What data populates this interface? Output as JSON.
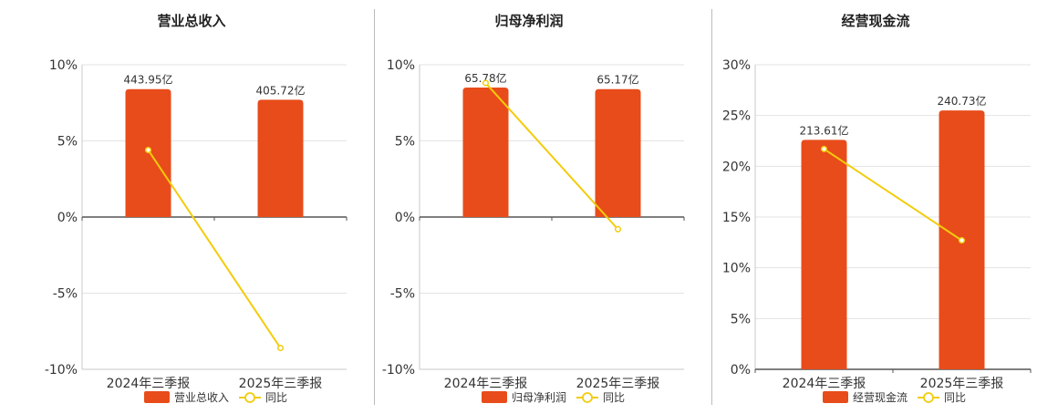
{
  "chart_data": [
    {
      "type": "bar",
      "title": "营业总收入",
      "categories": [
        "2024年三季报",
        "2025年三季报"
      ],
      "series": [
        {
          "name": "营业总收入",
          "type": "bar",
          "values": [
            8.4,
            7.7
          ],
          "labels": [
            "443.95亿",
            "405.72亿"
          ]
        },
        {
          "name": "同比",
          "type": "line",
          "values": [
            4.4,
            -8.6
          ]
        }
      ],
      "ylim": [
        -10,
        10
      ],
      "yticks": [
        -10,
        -5,
        0,
        5,
        10
      ],
      "ytick_labels": [
        "-10%",
        "-5%",
        "0%",
        "5%",
        "10%"
      ],
      "grid": true,
      "legend": "bottom"
    },
    {
      "type": "bar",
      "title": "归母净利润",
      "categories": [
        "2024年三季报",
        "2025年三季报"
      ],
      "series": [
        {
          "name": "归母净利润",
          "type": "bar",
          "values": [
            8.5,
            8.4
          ],
          "labels": [
            "65.78亿",
            "65.17亿"
          ]
        },
        {
          "name": "同比",
          "type": "line",
          "values": [
            8.8,
            -0.8
          ]
        }
      ],
      "ylim": [
        -10,
        10
      ],
      "yticks": [
        -10,
        -5,
        0,
        5,
        10
      ],
      "ytick_labels": [
        "-10%",
        "-5%",
        "0%",
        "5%",
        "10%"
      ],
      "grid": true,
      "legend": "bottom"
    },
    {
      "type": "bar",
      "title": "经营现金流",
      "categories": [
        "2024年三季报",
        "2025年三季报"
      ],
      "series": [
        {
          "name": "经营现金流",
          "type": "bar",
          "values": [
            22.6,
            25.5
          ],
          "labels": [
            "213.61亿",
            "240.73亿"
          ]
        },
        {
          "name": "同比",
          "type": "line",
          "values": [
            21.7,
            12.7
          ]
        }
      ],
      "ylim": [
        0,
        30
      ],
      "yticks": [
        0,
        5,
        10,
        15,
        20,
        25,
        30
      ],
      "ytick_labels": [
        "0%",
        "5%",
        "10%",
        "15%",
        "20%",
        "25%",
        "30%"
      ],
      "grid": true,
      "legend": "bottom"
    }
  ],
  "colors": {
    "bar": "#e84c1a",
    "line": "#f2cc0c",
    "grid": "#e3e3e3",
    "axis": "#555555",
    "title": "#222222",
    "text": "#333333"
  }
}
